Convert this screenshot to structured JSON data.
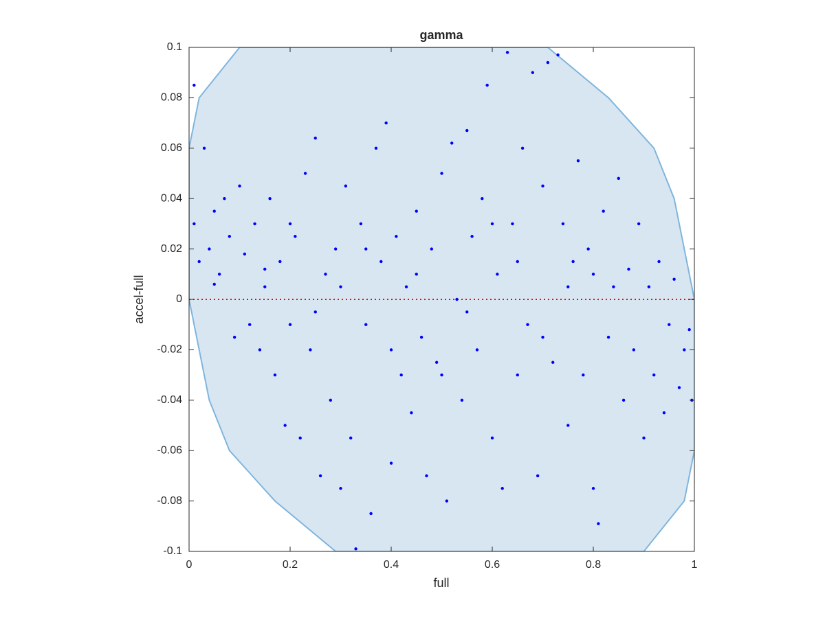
{
  "chart_data": {
    "type": "scatter",
    "title": "gamma",
    "xlabel": "full",
    "ylabel": "accel-full",
    "xlim": [
      0,
      1
    ],
    "ylim": [
      -0.1,
      0.1
    ],
    "xticks": [
      0,
      0.2,
      0.4,
      0.6,
      0.8,
      1
    ],
    "yticks": [
      -0.1,
      -0.08,
      -0.06,
      -0.04,
      -0.02,
      0,
      0.02,
      0.04,
      0.06,
      0.08,
      0.1
    ],
    "color": "#0000ff",
    "x": [
      0.01,
      0.02,
      0.01,
      0.03,
      0.04,
      0.05,
      0.06,
      0.07,
      0.08,
      0.09,
      0.1,
      0.11,
      0.12,
      0.13,
      0.14,
      0.15,
      0.16,
      0.17,
      0.18,
      0.19,
      0.2,
      0.21,
      0.22,
      0.23,
      0.24,
      0.25,
      0.26,
      0.27,
      0.28,
      0.29,
      0.3,
      0.31,
      0.32,
      0.33,
      0.34,
      0.35,
      0.36,
      0.37,
      0.38,
      0.39,
      0.4,
      0.41,
      0.42,
      0.43,
      0.44,
      0.45,
      0.46,
      0.47,
      0.48,
      0.49,
      0.5,
      0.51,
      0.52,
      0.53,
      0.54,
      0.55,
      0.56,
      0.57,
      0.58,
      0.59,
      0.6,
      0.61,
      0.62,
      0.63,
      0.64,
      0.65,
      0.66,
      0.67,
      0.68,
      0.69,
      0.7,
      0.71,
      0.72,
      0.73,
      0.74,
      0.75,
      0.76,
      0.77,
      0.78,
      0.79,
      0.8,
      0.81,
      0.82,
      0.83,
      0.84,
      0.85,
      0.86,
      0.87,
      0.88,
      0.89,
      0.9,
      0.91,
      0.92,
      0.93,
      0.94,
      0.95,
      0.96,
      0.97,
      0.98,
      0.99,
      0.995,
      0.35,
      0.45,
      0.55,
      0.65,
      0.75,
      0.25,
      0.15,
      0.05,
      0.6,
      0.4,
      0.2,
      0.8,
      0.7,
      0.3,
      0.5
    ],
    "values": [
      0.03,
      0.015,
      0.085,
      0.06,
      0.02,
      0.035,
      0.01,
      0.04,
      0.025,
      -0.015,
      0.045,
      0.018,
      -0.01,
      0.03,
      -0.02,
      0.005,
      0.04,
      -0.03,
      0.015,
      -0.05,
      -0.01,
      0.025,
      -0.055,
      0.05,
      -0.02,
      0.064,
      -0.07,
      0.01,
      -0.04,
      0.02,
      -0.075,
      0.045,
      -0.055,
      -0.099,
      0.03,
      -0.01,
      -0.085,
      0.06,
      0.015,
      0.07,
      -0.065,
      0.025,
      -0.03,
      0.005,
      -0.045,
      0.035,
      -0.015,
      -0.07,
      0.02,
      -0.025,
      0.05,
      -0.08,
      0.062,
      0.0,
      -0.04,
      0.067,
      0.025,
      -0.02,
      0.04,
      0.085,
      -0.055,
      0.01,
      -0.075,
      0.098,
      0.03,
      -0.03,
      0.06,
      -0.01,
      0.09,
      -0.07,
      0.045,
      0.094,
      -0.025,
      0.097,
      0.03,
      -0.05,
      0.015,
      0.055,
      -0.03,
      0.02,
      -0.075,
      -0.089,
      0.035,
      -0.015,
      0.005,
      0.048,
      -0.04,
      0.012,
      -0.02,
      0.03,
      -0.055,
      0.005,
      -0.03,
      0.015,
      -0.045,
      -0.01,
      0.008,
      -0.035,
      -0.02,
      -0.012,
      -0.04,
      0.02,
      0.01,
      -0.005,
      0.015,
      0.005,
      -0.005,
      0.012,
      0.006,
      0.03,
      -0.02,
      0.03,
      0.01,
      -0.015,
      0.005,
      -0.03
    ],
    "region": {
      "color": "#d8e6f2",
      "edge": "#7fb5dc",
      "x": [
        0,
        0.02,
        0.1,
        0.71,
        0.83,
        0.92,
        0.96,
        0.98,
        1,
        1,
        0.98,
        0.9,
        0.29,
        0.17,
        0.08,
        0.04,
        0.02,
        0
      ],
      "y": [
        0.06,
        0.08,
        0.1,
        0.1,
        0.08,
        0.06,
        0.04,
        0.02,
        0,
        -0.06,
        -0.08,
        -0.1,
        -0.1,
        -0.08,
        -0.06,
        -0.04,
        -0.02,
        0
      ]
    },
    "reference_line": {
      "value": 0,
      "color": "#ff0000"
    }
  }
}
